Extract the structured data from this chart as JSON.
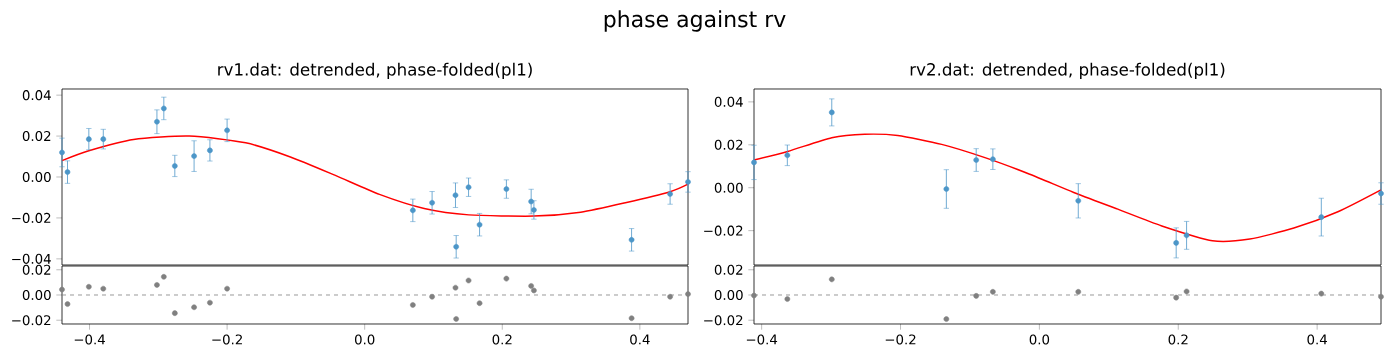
{
  "chart_data": [
    {
      "type": "scatter",
      "title": "phase against rv",
      "subtitle": "rv1.dat: detrended, phase-folded(pl1)",
      "tick_labels": "y",
      "xlim": [
        -0.44,
        0.47
      ],
      "ylim": [
        -0.043,
        0.043
      ],
      "yticks": [
        {
          "value": -0.04,
          "label": "−0.04"
        },
        {
          "value": -0.02,
          "label": "−0.02"
        },
        {
          "value": 0,
          "label": "0.00"
        },
        {
          "value": 0.02,
          "label": "0.02"
        },
        {
          "value": 0.04,
          "label": "0.04"
        }
      ],
      "series": [
        {
          "type": "scatter",
          "marker": "circle",
          "color": "#4c96c8",
          "x": [
            -0.44,
            -0.432,
            -0.401,
            -0.38,
            -0.302,
            -0.292,
            -0.276,
            -0.248,
            -0.225,
            -0.2,
            0.07,
            0.098,
            0.132,
            0.133,
            0.151,
            0.167,
            0.206,
            0.242,
            0.246,
            0.388,
            0.444,
            0.47
          ],
          "values": [
            0.012,
            0.0024,
            0.0185,
            0.0185,
            0.027,
            0.0335,
            0.0054,
            0.0102,
            0.013,
            0.0228,
            -0.0163,
            -0.0126,
            -0.0089,
            -0.0341,
            -0.005,
            -0.0233,
            -0.0059,
            -0.012,
            -0.0161,
            -0.0307,
            -0.0083,
            -0.0024
          ],
          "errors": [
            0.007,
            0.0055,
            0.0052,
            0.0048,
            0.0058,
            0.0055,
            0.0052,
            0.0075,
            0.0052,
            0.0055,
            0.0055,
            0.0055,
            0.006,
            0.0055,
            0.0045,
            0.0055,
            0.0045,
            0.006,
            0.0045,
            0.0055,
            0.005,
            0.005
          ]
        },
        {
          "type": "line",
          "color": "#ff0000",
          "x": [
            -0.44,
            -0.401,
            -0.336,
            -0.255,
            -0.173,
            -0.108,
            -0.0435,
            0.0215,
            0.0865,
            0.1515,
            0.2458,
            0.314,
            0.379,
            0.444,
            0.47
          ],
          "values": [
            0.008,
            0.0128,
            0.0183,
            0.02,
            0.0167,
            0.0098,
            0.0009,
            -0.0085,
            -0.0154,
            -0.0185,
            -0.0191,
            -0.0172,
            -0.0126,
            -0.0072,
            -0.0035
          ]
        }
      ]
    },
    {
      "type": "scatter",
      "title": "rv2.dat: detrended, phase-folded(pl1)",
      "tick_labels": "y",
      "xlim": [
        -0.411,
        0.492
      ],
      "ylim": [
        -0.036,
        0.046
      ],
      "yticks": [
        {
          "value": -0.02,
          "label": "−0.02"
        },
        {
          "value": 0,
          "label": "0.00"
        },
        {
          "value": 0.02,
          "label": "0.02"
        },
        {
          "value": 0.04,
          "label": "0.04"
        }
      ],
      "series": [
        {
          "type": "scatter",
          "marker": "circle",
          "color": "#4c96c8",
          "x": [
            -0.411,
            -0.363,
            -0.299,
            -0.134,
            -0.091,
            -0.067,
            0.056,
            0.197,
            0.212,
            0.406,
            0.492
          ],
          "values": [
            0.0118,
            0.0151,
            0.0351,
            -0.0006,
            0.0129,
            0.0133,
            -0.0061,
            -0.0257,
            -0.0222,
            -0.0137,
            -0.0027
          ],
          "errors": [
            0.008,
            0.0048,
            0.0063,
            0.009,
            0.0053,
            0.0048,
            0.008,
            0.007,
            0.0065,
            0.0088,
            0.005
          ]
        },
        {
          "type": "line",
          "color": "#ff0000",
          "x": [
            -0.411,
            -0.3626,
            -0.299,
            -0.2516,
            -0.204,
            -0.1407,
            -0.0773,
            -0.0139,
            0.0495,
            0.1129,
            0.1763,
            0.2492,
            0.3031,
            0.3665,
            0.4299,
            0.492
          ],
          "values": [
            0.0129,
            0.0169,
            0.0233,
            0.0249,
            0.0243,
            0.0202,
            0.0139,
            0.0063,
            -0.0022,
            -0.01,
            -0.0178,
            -0.0247,
            -0.0239,
            -0.0188,
            -0.0112,
            -0.001
          ]
        }
      ]
    },
    {
      "type": "scatter",
      "marker": "circle",
      "xlim": [
        -0.44,
        0.47
      ],
      "ylim": [
        -0.023,
        0.023
      ],
      "xticks": [
        {
          "value": -0.4,
          "label": "−0.4"
        },
        {
          "value": -0.2,
          "label": "−0.2"
        },
        {
          "value": 0,
          "label": "0.0"
        },
        {
          "value": 0.2,
          "label": "0.2"
        },
        {
          "value": 0.4,
          "label": "0.4"
        }
      ],
      "yticks": [
        {
          "value": -0.02,
          "label": "−0.02"
        },
        {
          "value": 0,
          "label": "0.00"
        },
        0.02
      ],
      "ref_lines": [
        {
          "axis": "y",
          "value": 0,
          "color": "#808080",
          "line_style": "dashed"
        }
      ],
      "series": [
        {
          "color": "#808080",
          "x": [
            -0.44,
            -0.432,
            -0.401,
            -0.38,
            -0.302,
            -0.292,
            -0.276,
            -0.248,
            -0.225,
            -0.2,
            0.07,
            0.098,
            0.132,
            0.133,
            0.151,
            0.167,
            0.206,
            0.242,
            0.246,
            0.388,
            0.444,
            0.47
          ],
          "values": [
            0.0043,
            -0.0072,
            0.0065,
            0.005,
            0.008,
            0.0144,
            -0.0144,
            -0.0097,
            -0.0061,
            0.005,
            -0.0079,
            -0.0014,
            0.0058,
            -0.019,
            0.0115,
            -0.0065,
            0.013,
            0.0072,
            0.0036,
            -0.0184,
            -0.0014,
            0.0007
          ]
        }
      ]
    },
    {
      "type": "scatter",
      "marker": "circle",
      "xlim": [
        -0.411,
        0.492
      ],
      "ylim": [
        -0.023,
        0.023
      ],
      "xticks": [
        {
          "value": -0.4,
          "label": "−0.4"
        },
        {
          "value": -0.2,
          "label": "−0.2"
        },
        {
          "value": 0,
          "label": "0.0"
        },
        {
          "value": 0.2,
          "label": "0.2"
        },
        {
          "value": 0.4,
          "label": "0.4"
        }
      ],
      "yticks": [
        {
          "value": -0.02,
          "label": "−0.02"
        },
        {
          "value": 0,
          "label": "0.00"
        },
        0.02
      ],
      "ref_lines": [
        {
          "axis": "y",
          "value": 0,
          "color": "#808080",
          "line_style": "dashed"
        }
      ],
      "series": [
        {
          "color": "#808080",
          "x": [
            -0.411,
            -0.363,
            -0.299,
            -0.134,
            -0.091,
            -0.067,
            0.056,
            0.197,
            0.212,
            0.406,
            0.492
          ],
          "values": [
            -0.0004,
            -0.0032,
            0.0124,
            -0.0191,
            -0.0007,
            0.0025,
            0.0025,
            -0.0021,
            0.0028,
            0.0011,
            -0.0014
          ]
        }
      ]
    }
  ]
}
